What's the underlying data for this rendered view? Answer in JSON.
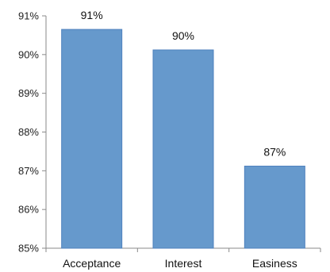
{
  "chart_data": {
    "type": "bar",
    "title": "",
    "xlabel": "",
    "ylabel": "",
    "categories": [
      "Acceptance",
      "Interest",
      "Easiness"
    ],
    "values": [
      90.65,
      90.12,
      87.12
    ],
    "data_labels": [
      "91%",
      "90%",
      "87%"
    ],
    "ylim": [
      85,
      91
    ],
    "y_ticks": [
      85,
      86,
      87,
      88,
      89,
      90,
      91
    ],
    "y_tick_labels": [
      "85%",
      "86%",
      "87%",
      "88%",
      "89%",
      "90%",
      "91%"
    ],
    "grid": false,
    "legend": "none",
    "bar_color": "#6699CC",
    "bar_edge_color": "#4F81BD"
  }
}
